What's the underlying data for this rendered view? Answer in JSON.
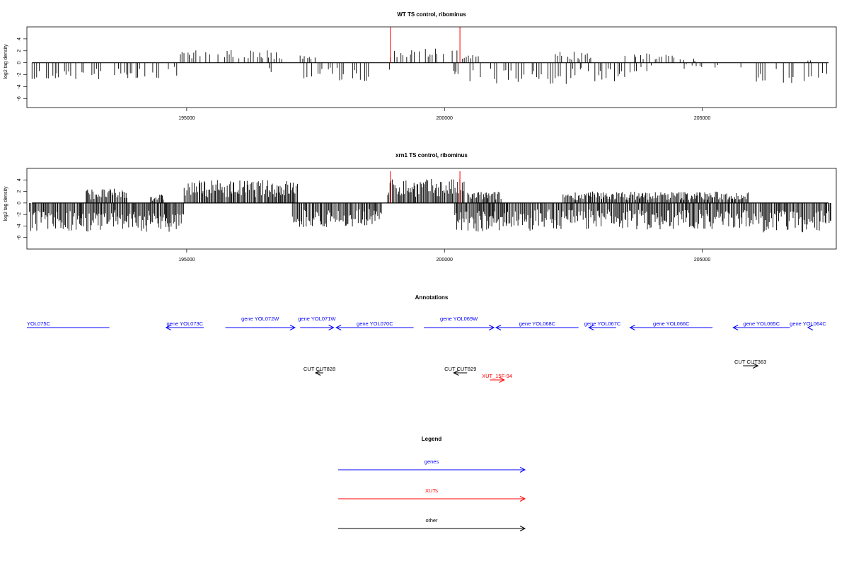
{
  "chart_data": [
    {
      "type": "bar",
      "title": "WT TS control, ribominus",
      "ylabel": "log2 tag density",
      "xlim": [
        191900,
        207600
      ],
      "ylim": [
        -7.5,
        6
      ],
      "x_ticks": [
        195000,
        200000,
        205000
      ],
      "y_ticks": [
        4,
        2,
        0,
        -2,
        -4,
        -6
      ],
      "pos_regions": [
        [
          193750,
          193800,
          1.8
        ],
        [
          194850,
          196850,
          2.2
        ],
        [
          197200,
          197500,
          1.2
        ],
        [
          198950,
          200250,
          2.4
        ],
        [
          200350,
          200750,
          1.3
        ],
        [
          202150,
          202900,
          2.0
        ],
        [
          203500,
          204650,
          1.6
        ],
        [
          204800,
          204950,
          0.8
        ],
        [
          207050,
          207150,
          0.8
        ]
      ],
      "neg_regions": [
        [
          192000,
          193450,
          -3.0
        ],
        [
          193600,
          194900,
          -2.6
        ],
        [
          196600,
          196650,
          -2.0
        ],
        [
          197250,
          198550,
          -3.2
        ],
        [
          198850,
          198950,
          -1.5
        ],
        [
          200150,
          200350,
          -2.0
        ],
        [
          200300,
          202650,
          -3.6
        ],
        [
          202650,
          203500,
          -3.2
        ],
        [
          203600,
          204100,
          -1.8
        ],
        [
          204650,
          205000,
          -1.0
        ],
        [
          205250,
          205400,
          -1.6
        ],
        [
          205750,
          205800,
          -3.0
        ],
        [
          206050,
          207450,
          -3.8
        ]
      ],
      "red_marks": [
        198950,
        200300
      ],
      "red_height": 6.0
    },
    {
      "type": "bar",
      "title": "xrn1 TS control, ribominus",
      "ylabel": "log2 tag density",
      "xlim": [
        191900,
        207600
      ],
      "ylim": [
        -8,
        6
      ],
      "x_ticks": [
        195000,
        200000,
        205000
      ],
      "y_ticks": [
        4,
        2,
        0,
        -2,
        -4,
        -6
      ],
      "pos_regions": [
        [
          193050,
          193850,
          2.5
        ],
        [
          194300,
          194550,
          1.5
        ],
        [
          194950,
          197150,
          4.0
        ],
        [
          198900,
          200400,
          4.2
        ],
        [
          200450,
          201100,
          2.0
        ],
        [
          202300,
          205900,
          2.0
        ]
      ],
      "neg_regions": [
        [
          191950,
          194950,
          -5.0
        ],
        [
          197050,
          198800,
          -4.2
        ],
        [
          200200,
          201800,
          -5.0
        ],
        [
          201800,
          206050,
          -4.6
        ],
        [
          206100,
          207500,
          -5.2
        ]
      ],
      "red_marks": [
        198950,
        200300
      ],
      "red_height": 5.5
    }
  ],
  "annotations": {
    "title": "Annotations",
    "genes": [
      {
        "label": "YOL075C",
        "start": 191900,
        "end": 193500,
        "dir": "none"
      },
      {
        "label": "gene YOL073C",
        "start": 194600,
        "end": 195330,
        "dir": "left"
      },
      {
        "label": "gene YOL072W",
        "start": 195750,
        "end": 197100,
        "dir": "right"
      },
      {
        "label": "gene YOL071W",
        "start": 197200,
        "end": 197850,
        "dir": "right"
      },
      {
        "label": "gene YOL070C",
        "start": 197900,
        "end": 199400,
        "dir": "left"
      },
      {
        "label": "gene YOL069W",
        "start": 199600,
        "end": 200960,
        "dir": "right"
      },
      {
        "label": "gene YOL068C",
        "start": 201000,
        "end": 202600,
        "dir": "left"
      },
      {
        "label": "gene YOL067C",
        "start": 202800,
        "end": 203330,
        "dir": "left"
      },
      {
        "label": "gene YOL066C",
        "start": 203600,
        "end": 205200,
        "dir": "left"
      },
      {
        "label": "gene YOL065C",
        "start": 205600,
        "end": 206700,
        "dir": "left"
      },
      {
        "label": "gene YOL064C",
        "start": 207050,
        "end": 207950,
        "dir": "left"
      }
    ],
    "others": [
      {
        "label": "CUT CUT828",
        "start": 197500,
        "end": 197650,
        "dir": "left",
        "row": 2
      },
      {
        "label": "CUT CUT829",
        "start": 200180,
        "end": 200440,
        "dir": "left",
        "row": 2
      },
      {
        "label": "CUT CUT363",
        "start": 205790,
        "end": 206080,
        "dir": "right",
        "row": 1
      }
    ],
    "xuts": [
      {
        "label": "XUT_15F-94",
        "start": 200880,
        "end": 201160,
        "dir": "right"
      }
    ]
  },
  "legend": {
    "title": "Legend",
    "items": [
      {
        "label": "genes",
        "color": "#0000ff"
      },
      {
        "label": "XUTs",
        "color": "#ff0000"
      },
      {
        "label": "other",
        "color": "#000000"
      }
    ]
  },
  "colors": {
    "gene": "#0000ff",
    "xut": "#ff0000",
    "other": "#000000",
    "red_mark": "#ff0000"
  }
}
